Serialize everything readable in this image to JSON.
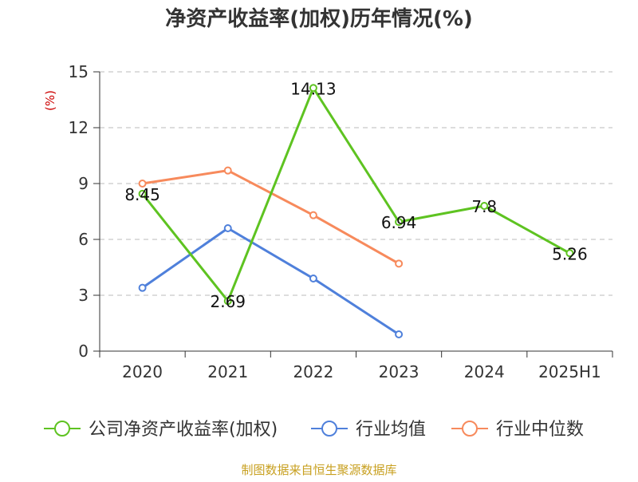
{
  "chart_data": {
    "type": "line",
    "title": "净资产收益率(加权)历年情况(%)",
    "ylabel": "(%)",
    "xlabel": "",
    "categories": [
      "2020",
      "2021",
      "2022",
      "2023",
      "2024",
      "2025H1"
    ],
    "ylim": [
      0,
      15
    ],
    "yticks": [
      0,
      3,
      6,
      9,
      12,
      15
    ],
    "grid": true,
    "legend_position": "bottom",
    "series": [
      {
        "name": "公司净资产收益率(加权)",
        "color": "#5ec321",
        "values": [
          8.45,
          2.69,
          14.13,
          6.94,
          7.8,
          5.26
        ],
        "labels": [
          "8.45",
          "2.69",
          "14.13",
          "6.94",
          "7.8",
          "5.26"
        ]
      },
      {
        "name": "行业均值",
        "color": "#4f80db",
        "values": [
          3.4,
          6.6,
          3.9,
          0.9,
          null,
          null
        ]
      },
      {
        "name": "行业中位数",
        "color": "#f78a5c",
        "values": [
          9.0,
          9.7,
          7.3,
          4.7,
          null,
          null
        ]
      }
    ],
    "source": "制图数据来自恒生聚源数据库"
  }
}
